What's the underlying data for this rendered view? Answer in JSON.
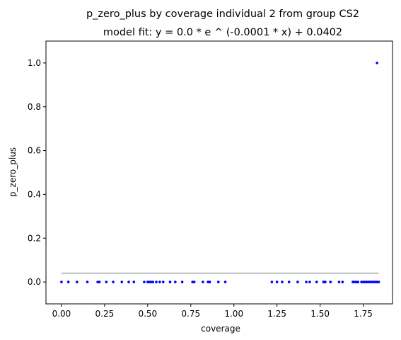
{
  "chart_data": {
    "type": "scatter",
    "title": "p_zero_plus by coverage individual 2 from group CS2",
    "subtitle": "model fit: y = 0.0 * e ^ (-0.0001 * x) + 0.0402",
    "xlabel": "coverage",
    "ylabel": "p_zero_plus",
    "xlim": [
      -0.09,
      1.92
    ],
    "ylim": [
      -0.1,
      1.1
    ],
    "x_ticks": [
      {
        "value": 0.0,
        "label": "0.00"
      },
      {
        "value": 0.25,
        "label": "0.25"
      },
      {
        "value": 0.5,
        "label": "0.50"
      },
      {
        "value": 0.75,
        "label": "0.75"
      },
      {
        "value": 1.0,
        "label": "1.00"
      },
      {
        "value": 1.25,
        "label": "1.25"
      },
      {
        "value": 1.5,
        "label": "1.50"
      },
      {
        "value": 1.75,
        "label": "1.75"
      }
    ],
    "y_ticks": [
      {
        "value": 0.0,
        "label": "0.0"
      },
      {
        "value": 0.2,
        "label": "0.2"
      },
      {
        "value": 0.4,
        "label": "0.4"
      },
      {
        "value": 0.6,
        "label": "0.6"
      },
      {
        "value": 0.8,
        "label": "0.8"
      },
      {
        "value": 1.0,
        "label": "1.0"
      }
    ],
    "grid": false,
    "points_color": "#0000ff",
    "fit_color": "#a6a6a6",
    "series": [
      {
        "kind": "points",
        "x": [
          0.0,
          0.04,
          0.09,
          0.15,
          0.21,
          0.22,
          0.26,
          0.3,
          0.35,
          0.39,
          0.42,
          0.48,
          0.5,
          0.51,
          0.52,
          0.53,
          0.55,
          0.57,
          0.59,
          0.63,
          0.66,
          0.7,
          0.76,
          0.77,
          0.82,
          0.85,
          0.86,
          0.91,
          0.95,
          1.22,
          1.25,
          1.28,
          1.32,
          1.37,
          1.42,
          1.44,
          1.48,
          1.52,
          1.53,
          1.56,
          1.61,
          1.63,
          1.69,
          1.7,
          1.71,
          1.72,
          1.74,
          1.75,
          1.76,
          1.77,
          1.78,
          1.79,
          1.8,
          1.81,
          1.82,
          1.83,
          1.84,
          1.83
        ],
        "y": [
          0,
          0,
          0,
          0,
          0,
          0,
          0,
          0,
          0,
          0,
          0,
          0,
          0,
          0,
          0,
          0,
          0,
          0,
          0,
          0,
          0,
          0,
          0,
          0,
          0,
          0,
          0,
          0,
          0,
          0,
          0,
          0,
          0,
          0,
          0,
          0,
          0,
          0,
          0,
          0,
          0,
          0,
          0,
          0,
          0,
          0,
          0,
          0,
          0,
          0,
          0,
          0,
          0,
          0,
          0,
          0,
          0,
          1.0
        ]
      },
      {
        "kind": "line",
        "x": [
          0.0,
          1.84
        ],
        "y": [
          0.0402,
          0.0402
        ]
      }
    ]
  }
}
